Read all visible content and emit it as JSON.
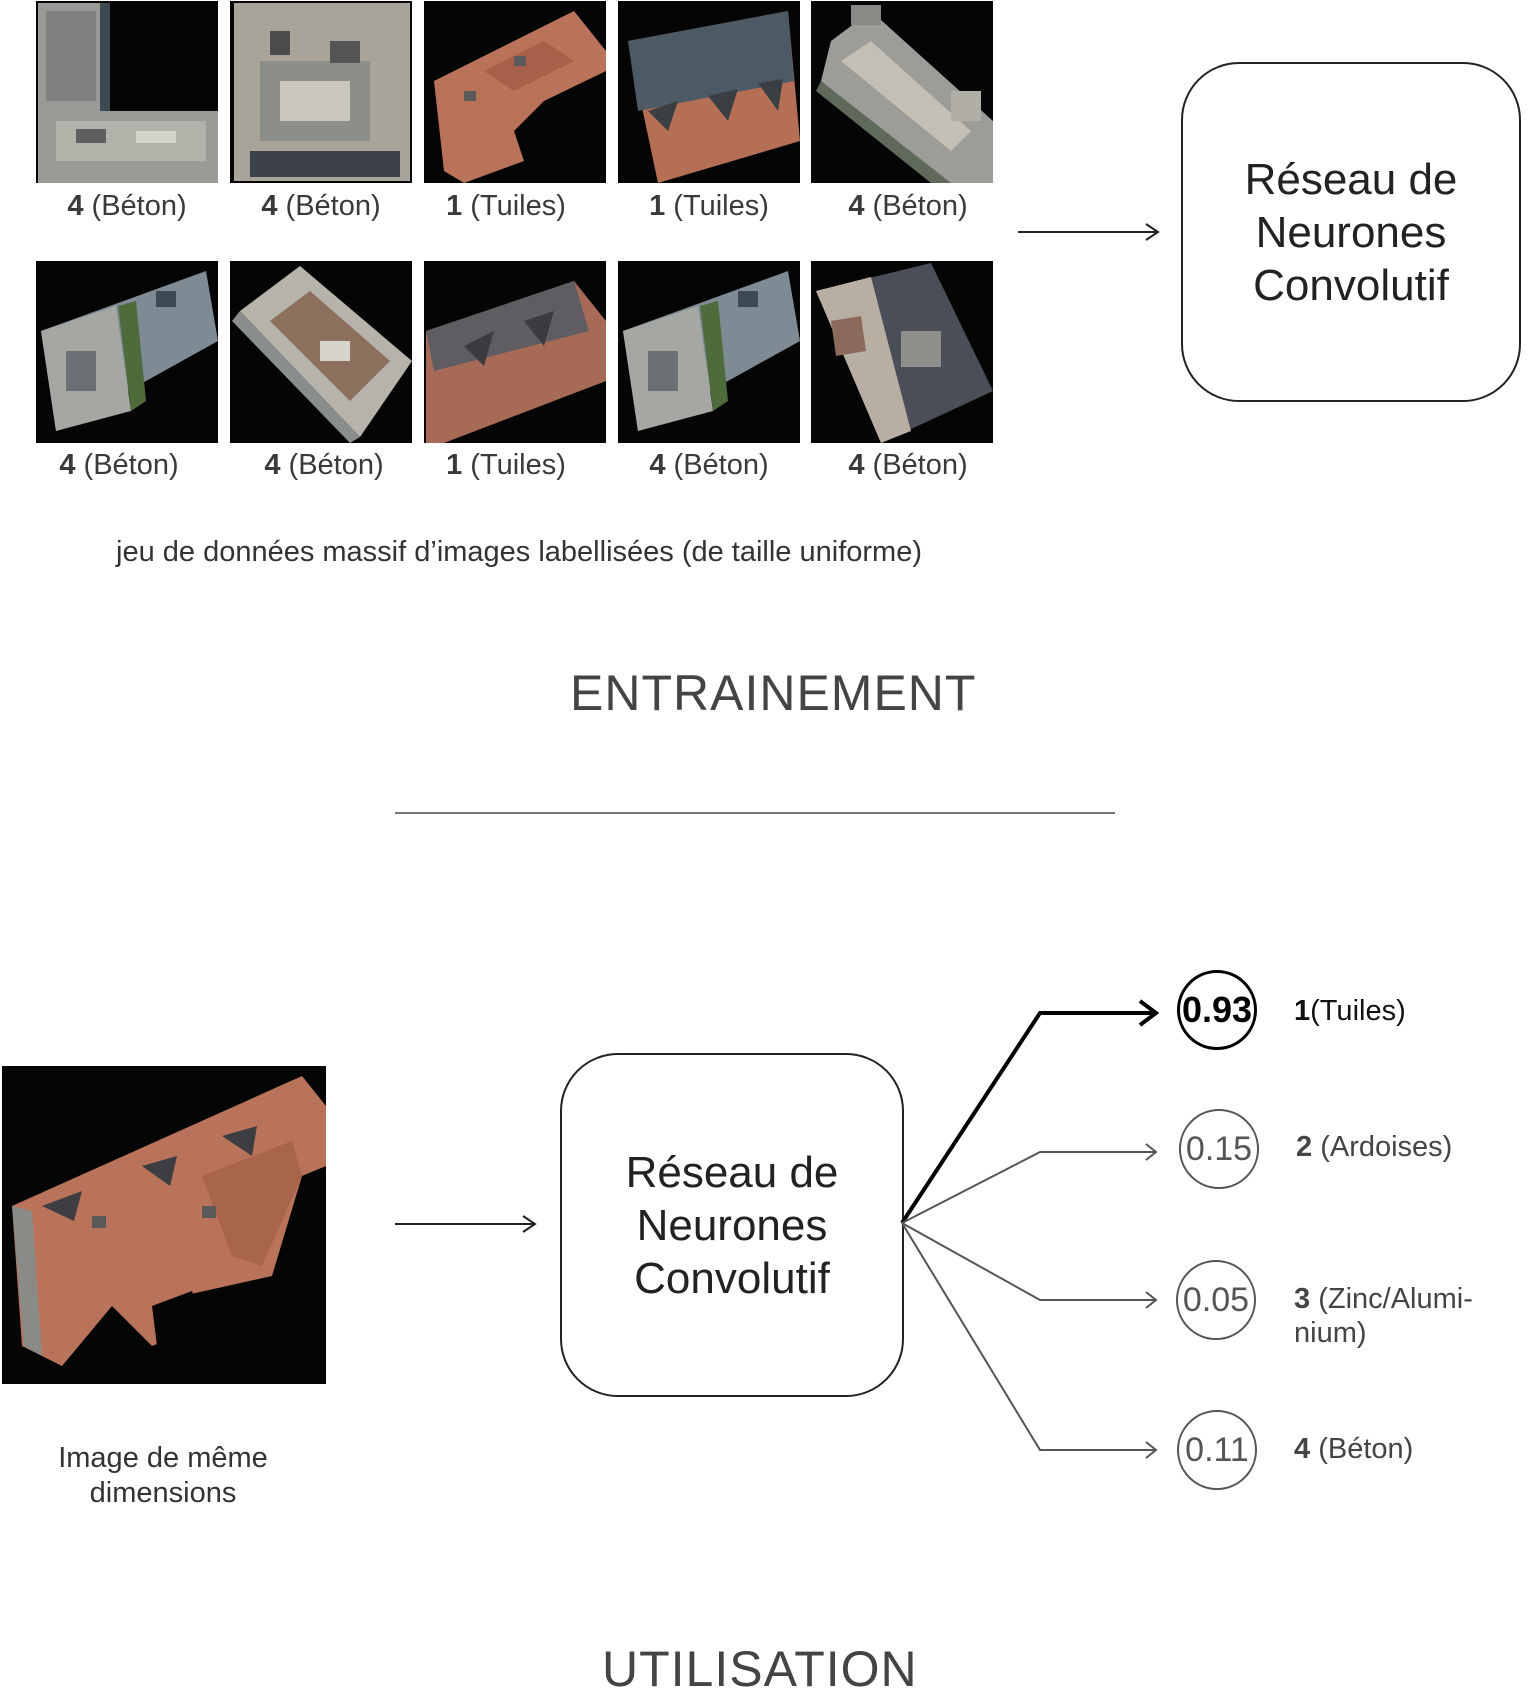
{
  "training": {
    "row1": [
      {
        "num": "4",
        "label": "(Béton)",
        "material": "beton"
      },
      {
        "num": "4",
        "label": "(Béton)",
        "material": "beton"
      },
      {
        "num": "1",
        "label": "(Tuiles)",
        "material": "tuiles"
      },
      {
        "num": "1",
        "label": "(Tuiles)",
        "material": "tuiles"
      },
      {
        "num": "4",
        "label": "(Béton)",
        "material": "beton"
      }
    ],
    "row2": [
      {
        "num": "4",
        "label": "(Béton)",
        "material": "beton"
      },
      {
        "num": "4",
        "label": "(Béton)",
        "material": "beton"
      },
      {
        "num": "1",
        "label": "(Tuiles)",
        "material": "tuiles"
      },
      {
        "num": "4",
        "label": "(Béton)",
        "material": "beton"
      },
      {
        "num": "4",
        "label": "(Béton)",
        "material": "beton"
      }
    ],
    "dataset_caption": "jeu de données massif d’images labellisées (de taille uniforme)",
    "cnn_label": "Réseau de\nNeurones\nConvolutif",
    "section_title": "ENTRAINEMENT"
  },
  "usage": {
    "input_caption_line1": "Image de même",
    "input_caption_line2": "dimensions",
    "cnn_label": "Réseau de\nNeurones\nConvolutif",
    "outputs": [
      {
        "prob": "0.93",
        "num": "1",
        "label": "(Tuiles)",
        "label2": "",
        "top": true
      },
      {
        "prob": "0.15",
        "num": "2",
        "label": " (Ardoises)",
        "label2": "",
        "top": false
      },
      {
        "prob": "0.05",
        "num": "3",
        "label": " (Zinc/Alumi-",
        "label2": "nium)",
        "top": false
      },
      {
        "prob": "0.11",
        "num": "4",
        "label": " (Béton)",
        "label2": "",
        "top": false
      }
    ],
    "section_title": "UTILISATION"
  },
  "colors": {
    "tile_roof": "#b8735a",
    "concrete_roof": "#8f9194",
    "background": "#050505"
  }
}
